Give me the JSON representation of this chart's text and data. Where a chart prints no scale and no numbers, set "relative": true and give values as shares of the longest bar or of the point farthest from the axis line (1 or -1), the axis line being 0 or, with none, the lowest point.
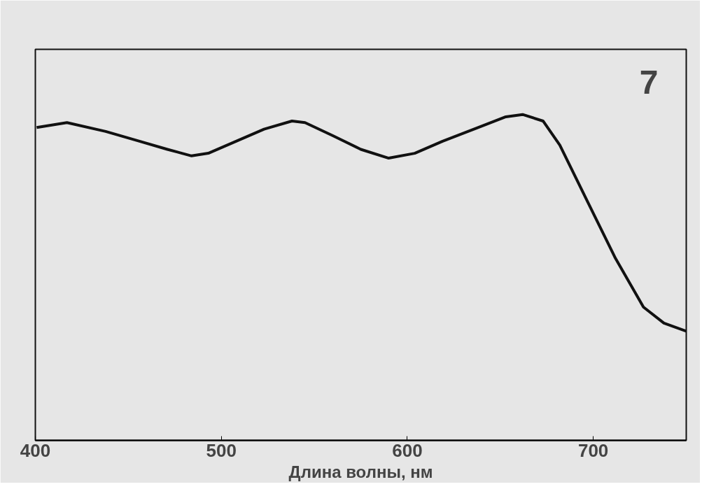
{
  "chart_data": {
    "type": "line",
    "relative": true,
    "xlabel": "Длина волны, нм",
    "xlim": [
      400,
      750
    ],
    "xticks": [
      400,
      500,
      600,
      700
    ],
    "tick_labels": "x",
    "annotations": [
      "7"
    ],
    "series": [
      {
        "color": "#111111",
        "x": [
          400.7,
          417,
          437.8,
          456,
          471,
          484,
          493,
          508,
          523,
          538,
          545,
          560,
          575,
          590,
          604,
          619,
          638,
          653,
          662,
          673,
          682,
          697,
          712,
          727,
          738,
          750
        ],
        "values": [
          0.96,
          0.975,
          0.948,
          0.918,
          0.893,
          0.873,
          0.881,
          0.918,
          0.955,
          0.98,
          0.975,
          0.935,
          0.893,
          0.866,
          0.881,
          0.918,
          0.96,
          0.993,
          1,
          0.98,
          0.906,
          0.732,
          0.558,
          0.409,
          0.36,
          0.335
        ]
      }
    ]
  }
}
